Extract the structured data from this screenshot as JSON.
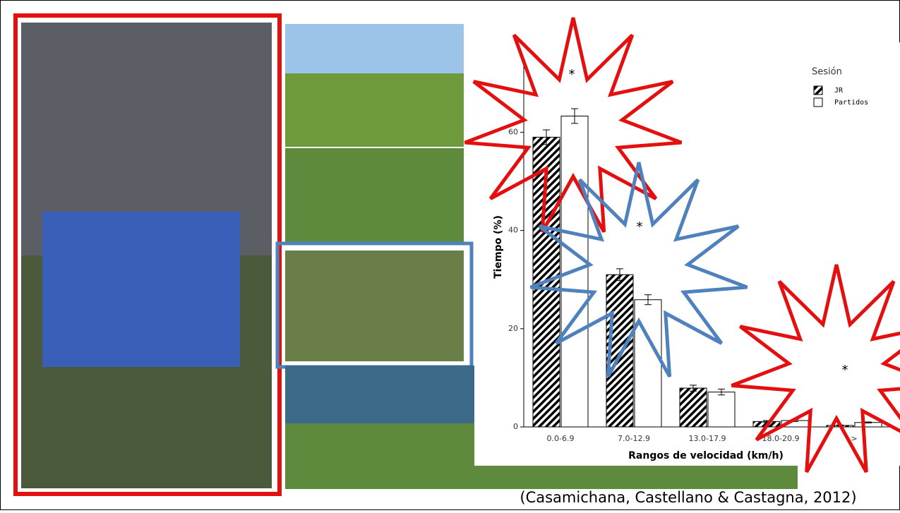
{
  "chart_data": {
    "type": "bar",
    "y_label": "Tiempo (%)",
    "x_label": "Rangos de velocidad (km/h)",
    "legend_title": "Sesión",
    "categories": [
      "0.0-6.9",
      "7.0-12.9",
      "13.0-17.9",
      "18.0-20.9",
      ">"
    ],
    "series": [
      {
        "name": "JR",
        "color": "#000000",
        "pattern": "hatch",
        "values": [
          59,
          31,
          7.9,
          1.1,
          0.3
        ],
        "errors": [
          1.5,
          1.2,
          0.6,
          0.2,
          0.1
        ]
      },
      {
        "name": "Partidos",
        "color": "#ffffff",
        "values": [
          63.3,
          25.9,
          7.1,
          1.3,
          0.9
        ],
        "errors": [
          1.5,
          1.0,
          0.6,
          0.2,
          0.1
        ]
      }
    ],
    "ylim": [
      0,
      74
    ],
    "yticks": [
      0,
      20,
      40,
      60
    ],
    "annotations": [
      "*",
      "*",
      "*"
    ]
  },
  "citation": "(Casamichana, Castellano & Castagna, 2012)"
}
